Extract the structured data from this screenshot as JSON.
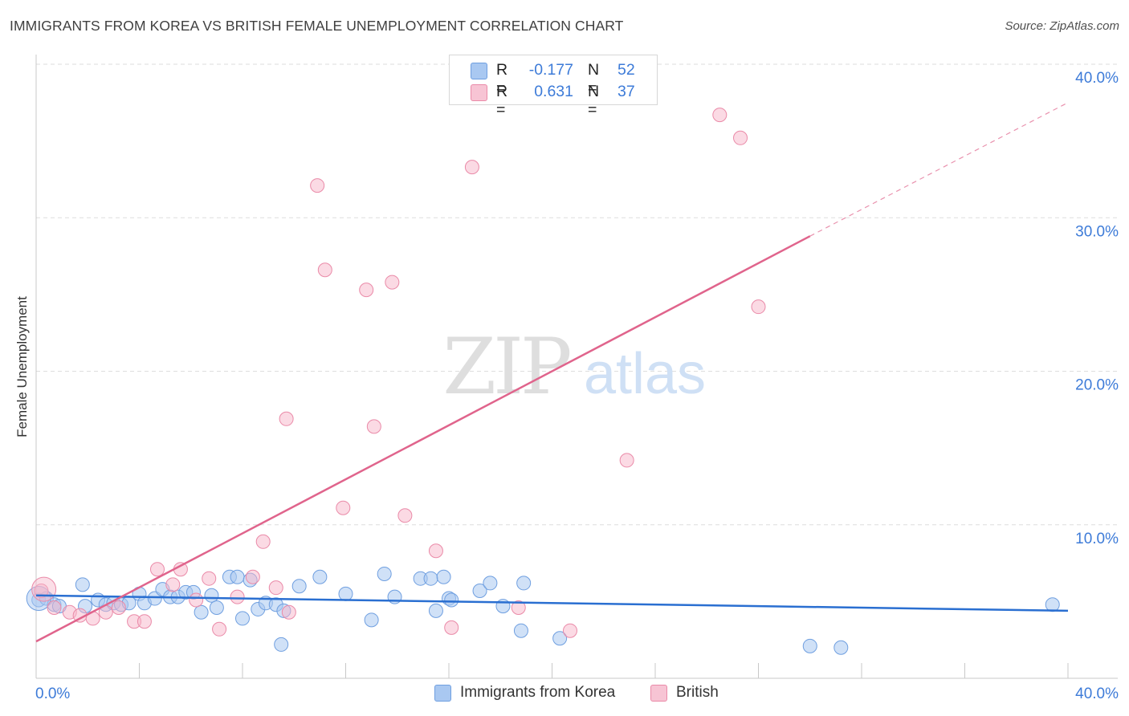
{
  "title": "IMMIGRANTS FROM KOREA VS BRITISH FEMALE UNEMPLOYMENT CORRELATION CHART",
  "source": "Source: ZipAtlas.com",
  "watermark": {
    "zip": "ZIP",
    "atlas": "atlas"
  },
  "legend_top": [
    {
      "r_label": "R =",
      "r_value": "-0.177",
      "n_label": "N =",
      "n_value": "52"
    },
    {
      "r_label": "R =",
      "r_value": "0.631",
      "n_label": "N =",
      "n_value": "37"
    }
  ],
  "legend_bottom": [
    {
      "label": "Immigrants from Korea"
    },
    {
      "label": "British"
    }
  ],
  "colors": {
    "blue_fill": "#a9c8f1",
    "blue_stroke": "#6f9fe0",
    "blue_line": "#2a6fd1",
    "pink_fill": "#f7b6ca",
    "pink_stroke": "#ea8aa8",
    "pink_line": "#e0648c",
    "tick_text": "#3d7bd8",
    "grid": "#dedede"
  },
  "chart_data": {
    "type": "scatter",
    "title": "IMMIGRANTS FROM KOREA VS BRITISH FEMALE UNEMPLOYMENT CORRELATION CHART",
    "xlabel": "",
    "ylabel": "Female Unemployment",
    "xlim": [
      0,
      40
    ],
    "ylim": [
      0,
      40
    ],
    "x_tick_labels": [
      "0.0%",
      "40.0%"
    ],
    "y_ticks": [
      10,
      20,
      30,
      40
    ],
    "y_tick_labels": [
      "10.0%",
      "20.0%",
      "30.0%",
      "40.0%"
    ],
    "series": [
      {
        "name": "Immigrants from Korea",
        "color": "blue",
        "r": -0.177,
        "n": 52,
        "trend": {
          "x0": 0,
          "y0": 5.4,
          "x1": 40,
          "y1": 4.4
        },
        "points": [
          [
            0.1,
            5.1
          ],
          [
            0.4,
            5.2
          ],
          [
            0.7,
            4.8
          ],
          [
            0.9,
            4.7
          ],
          [
            1.8,
            6.1
          ],
          [
            1.9,
            4.7
          ],
          [
            2.4,
            5.1
          ],
          [
            2.7,
            4.8
          ],
          [
            3.0,
            4.9
          ],
          [
            3.3,
            4.8
          ],
          [
            3.6,
            4.9
          ],
          [
            4.0,
            5.5
          ],
          [
            4.2,
            4.9
          ],
          [
            4.6,
            5.2
          ],
          [
            4.9,
            5.8
          ],
          [
            5.2,
            5.3
          ],
          [
            5.5,
            5.3
          ],
          [
            5.8,
            5.6
          ],
          [
            6.1,
            5.6
          ],
          [
            6.4,
            4.3
          ],
          [
            6.8,
            5.4
          ],
          [
            7.0,
            4.6
          ],
          [
            7.5,
            6.6
          ],
          [
            7.8,
            6.6
          ],
          [
            8.0,
            3.9
          ],
          [
            8.3,
            6.4
          ],
          [
            8.6,
            4.5
          ],
          [
            8.9,
            4.9
          ],
          [
            9.3,
            4.8
          ],
          [
            9.5,
            2.2
          ],
          [
            9.6,
            4.4
          ],
          [
            10.2,
            6.0
          ],
          [
            11.0,
            6.6
          ],
          [
            12.0,
            5.5
          ],
          [
            13.0,
            3.8
          ],
          [
            13.5,
            6.8
          ],
          [
            13.9,
            5.3
          ],
          [
            14.9,
            6.5
          ],
          [
            15.3,
            6.5
          ],
          [
            15.5,
            4.4
          ],
          [
            15.8,
            6.6
          ],
          [
            16.0,
            5.2
          ],
          [
            16.1,
            5.1
          ],
          [
            17.2,
            5.7
          ],
          [
            17.6,
            6.2
          ],
          [
            18.1,
            4.7
          ],
          [
            18.8,
            3.1
          ],
          [
            18.9,
            6.2
          ],
          [
            20.3,
            2.6
          ],
          [
            30.0,
            2.1
          ],
          [
            31.2,
            2.0
          ],
          [
            39.4,
            4.8
          ]
        ]
      },
      {
        "name": "British",
        "color": "pink",
        "r": 0.631,
        "n": 37,
        "trend": {
          "x0": 0,
          "y0": 2.4,
          "x1": 30,
          "y1": 28.8,
          "dashed_x1": 40,
          "dashed_y1": 37.5
        },
        "points": [
          [
            0.2,
            5.7
          ],
          [
            0.7,
            4.6
          ],
          [
            1.3,
            4.3
          ],
          [
            1.7,
            4.1
          ],
          [
            2.2,
            3.9
          ],
          [
            2.7,
            4.3
          ],
          [
            3.2,
            4.6
          ],
          [
            3.8,
            3.7
          ],
          [
            4.2,
            3.7
          ],
          [
            4.7,
            7.1
          ],
          [
            5.3,
            6.1
          ],
          [
            5.6,
            7.1
          ],
          [
            6.2,
            5.1
          ],
          [
            6.7,
            6.5
          ],
          [
            7.1,
            3.2
          ],
          [
            7.8,
            5.3
          ],
          [
            8.4,
            6.6
          ],
          [
            8.8,
            8.9
          ],
          [
            9.3,
            5.9
          ],
          [
            9.8,
            4.3
          ],
          [
            9.7,
            16.9
          ],
          [
            10.9,
            32.1
          ],
          [
            11.2,
            26.6
          ],
          [
            11.9,
            11.1
          ],
          [
            12.8,
            25.3
          ],
          [
            13.1,
            16.4
          ],
          [
            13.8,
            25.8
          ],
          [
            14.3,
            10.6
          ],
          [
            15.5,
            8.3
          ],
          [
            16.1,
            3.3
          ],
          [
            16.9,
            33.3
          ],
          [
            18.7,
            4.6
          ],
          [
            20.7,
            3.1
          ],
          [
            22.9,
            14.2
          ],
          [
            26.5,
            36.7
          ],
          [
            27.3,
            35.2
          ],
          [
            28.0,
            24.2
          ]
        ]
      }
    ]
  }
}
